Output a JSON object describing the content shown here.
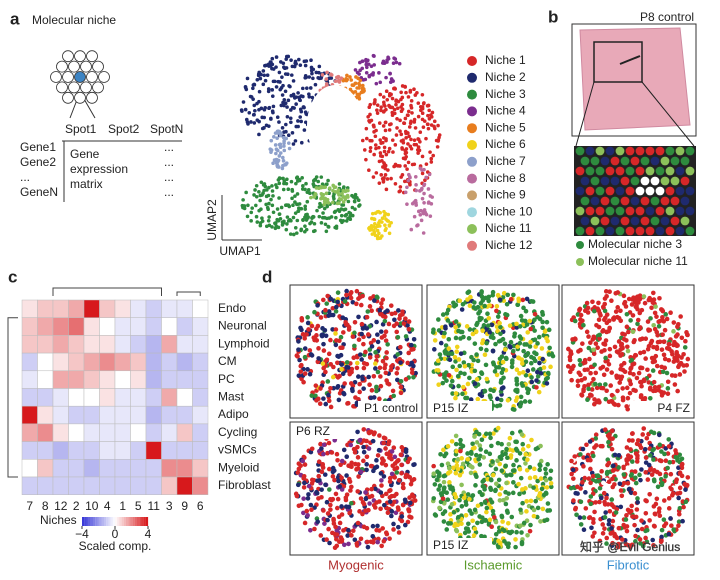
{
  "panel_a": {
    "label": "a",
    "title": "Molecular niche",
    "spots": [
      "Spot1",
      "Spot2",
      "SpotN"
    ],
    "genes": [
      "Gene1",
      "Gene2",
      "...",
      "GeneN"
    ],
    "matrix_text": [
      "Gene",
      "expression",
      "matrix"
    ],
    "ellipses": [
      "...",
      "...",
      "...",
      "..."
    ]
  },
  "umap": {
    "x_label": "UMAP1",
    "y_label": "UMAP2",
    "niches": [
      {
        "name": "Niche 1",
        "color": "#d62728"
      },
      {
        "name": "Niche 2",
        "color": "#1f2a6e"
      },
      {
        "name": "Niche 3",
        "color": "#2e8b3e"
      },
      {
        "name": "Niche 4",
        "color": "#7b2d8e"
      },
      {
        "name": "Niche 5",
        "color": "#e87d1e"
      },
      {
        "name": "Niche 6",
        "color": "#f0d21a"
      },
      {
        "name": "Niche 7",
        "color": "#8da0cb"
      },
      {
        "name": "Niche 8",
        "color": "#b96b9e"
      },
      {
        "name": "Niche 9",
        "color": "#c9a06b"
      },
      {
        "name": "Niche 10",
        "color": "#9fd6df"
      },
      {
        "name": "Niche 11",
        "color": "#8cc05a"
      },
      {
        "name": "Niche 12",
        "color": "#e07a7a"
      }
    ]
  },
  "panel_b": {
    "label": "b",
    "sample": "P8 control",
    "legend": [
      {
        "name": "Molecular niche 3",
        "color": "#2e8b3e"
      },
      {
        "name": "Molecular niche 11",
        "color": "#8cc05a"
      }
    ]
  },
  "panel_c": {
    "label": "c",
    "columns": [
      "7",
      "8",
      "12",
      "2",
      "10",
      "4",
      "1",
      "5",
      "11",
      "3",
      "9",
      "6"
    ],
    "rows": [
      "Endo",
      "Neuronal",
      "Lymphoid",
      "CM",
      "PC",
      "Mast",
      "Adipo",
      "Cycling",
      "vSMCs",
      "Myeloid",
      "Fibroblast"
    ],
    "values": [
      [
        0.5,
        1,
        1,
        1.5,
        4,
        1,
        0.5,
        -0.5,
        -1,
        -0.5,
        -0.5,
        0
      ],
      [
        1,
        1.5,
        2,
        2.5,
        0.5,
        0,
        -0.5,
        -0.5,
        -1,
        0,
        -1,
        -0.5
      ],
      [
        1,
        1,
        1.5,
        1,
        0.5,
        0.5,
        -0.5,
        -1,
        -1.5,
        1.5,
        -0.5,
        -0.5
      ],
      [
        -1,
        0,
        0.5,
        1,
        1.5,
        2,
        1.5,
        1,
        -1.5,
        -1,
        -1.5,
        -1
      ],
      [
        -0.5,
        0,
        1.5,
        1.5,
        1,
        0.5,
        0,
        0.5,
        -1.5,
        -1,
        -1,
        -1
      ],
      [
        -1,
        -1,
        -0.5,
        0,
        0,
        0.5,
        -0.5,
        -0.5,
        -1,
        1.5,
        0,
        -1
      ],
      [
        4,
        0.5,
        -0.5,
        -1,
        -1,
        -0.5,
        -0.5,
        -0.5,
        -1.5,
        -1,
        -1,
        -0.5
      ],
      [
        1.5,
        2,
        0.5,
        0,
        -0.5,
        -0.5,
        -0.5,
        0,
        -1,
        -0.5,
        1,
        -1
      ],
      [
        -1,
        -1,
        -1.5,
        -1,
        -1,
        -0.5,
        -0.5,
        -1,
        4,
        -1,
        -1,
        -1
      ],
      [
        0,
        1,
        -1,
        -1,
        -1.5,
        -1,
        -1,
        -1,
        -1,
        2,
        2,
        1
      ],
      [
        -1,
        -1,
        -1,
        -1,
        -1,
        -1,
        -1,
        -1,
        -1,
        1,
        4,
        2
      ]
    ],
    "x_label": "Niches",
    "colorbar_label": "Scaled comp.",
    "colorbar_range": [
      -4,
      4
    ],
    "colorbar_ticks": [
      {
        "value": -4,
        "label": "−4"
      },
      0,
      4
    ]
  },
  "panel_d": {
    "label": "d",
    "samples": [
      "P1 control",
      "P15 IZ",
      "P4 FZ",
      "P6 RZ",
      "P15 IZ",
      null
    ],
    "groups": [
      {
        "name": "Myogenic",
        "color": "#b03030"
      },
      {
        "name": "Ischaemic",
        "color": "#5a9a2a"
      },
      {
        "name": "Fibrotic",
        "color": "#3a8fd0"
      }
    ],
    "watermark": "知乎 @Evil Genius"
  }
}
